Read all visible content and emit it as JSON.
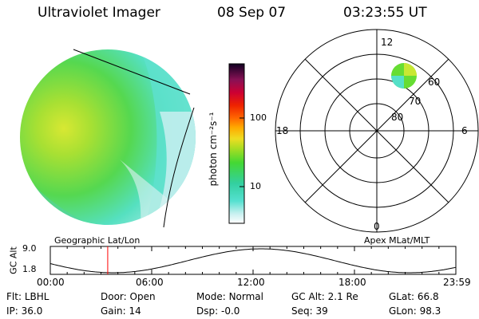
{
  "header": {
    "instrument": "Ultraviolet Imager",
    "date": "08 Sep 07",
    "time": "03:23:55 UT"
  },
  "colorbar": {
    "unit_label": "photon cm⁻²s⁻¹",
    "ticks": [
      "100",
      "10"
    ]
  },
  "polar_plot": {
    "mlt_labels": {
      "top": "12",
      "left": "18",
      "right": "6",
      "bottom": "0"
    },
    "lat_labels": [
      "60",
      "70",
      "80"
    ]
  },
  "timeline": {
    "axis_label": "GC Alt",
    "y_ticks": [
      "9.0",
      "1.8"
    ],
    "left_title": "Geographic Lat/Lon",
    "right_title": "Apex MLat/MLT",
    "x_ticks": [
      "00:00",
      "06:00",
      "12:00",
      "18:00",
      "23:59"
    ],
    "cursor_fraction_of_day": 0.1416
  },
  "info_rows": [
    [
      {
        "label": "Flt:",
        "value": "LBHL"
      },
      {
        "label": "Door:",
        "value": "Open"
      },
      {
        "label": "Mode:",
        "value": "Normal"
      },
      {
        "label": "GC Alt:",
        "value": "2.1 Re"
      },
      {
        "label": "GLat:",
        "value": "66.8"
      }
    ],
    [
      {
        "label": "IP:",
        "value": "36.0"
      },
      {
        "label": "Gain:",
        "value": "14"
      },
      {
        "label": "Dsp:",
        "value": "-0.0"
      },
      {
        "label": "Seq:",
        "value": "39"
      },
      {
        "label": "GLon:",
        "value": "98.3"
      }
    ]
  ],
  "colors": {
    "cursor": "#ff0000",
    "image_green": "#55dd33",
    "image_yellow": "#cce633",
    "image_cyan": "#55e0c8",
    "image_pale": "#c8f0f0"
  }
}
